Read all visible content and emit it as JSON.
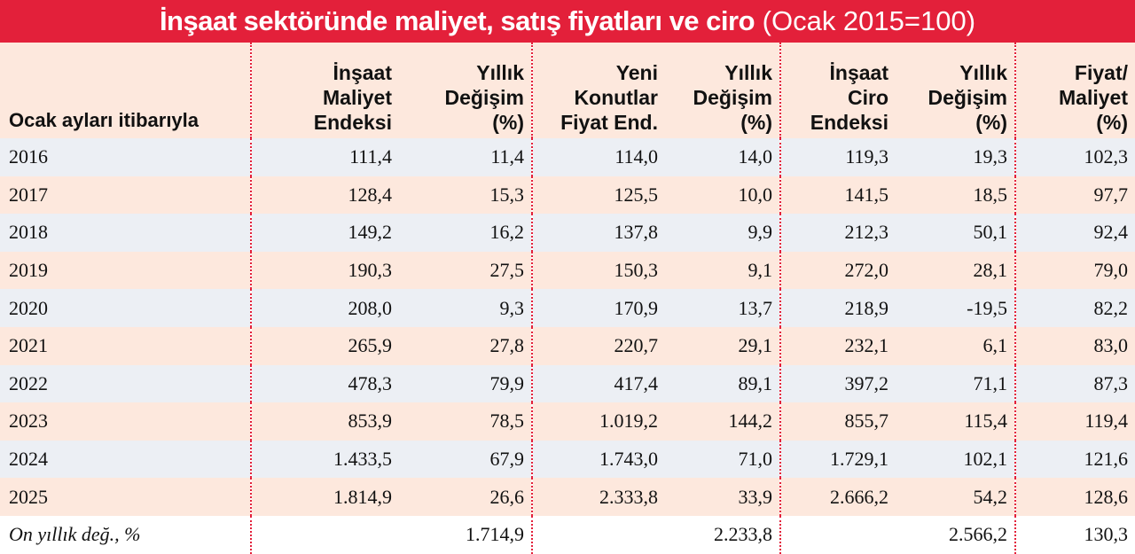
{
  "title": {
    "main": "İnşaat sektöründe maliyet, satış fiyatları ve ciro",
    "note": "(Ocak 2015=100)"
  },
  "header": [
    {
      "lines": [
        "Ocak ayları itibarıyla"
      ]
    },
    {
      "lines": [
        "İnşaat",
        "Maliyet",
        "Endeksi"
      ]
    },
    {
      "lines": [
        "Yıllık",
        "Değişim",
        "(%)"
      ]
    },
    {
      "lines": [
        "Yeni",
        "Konutlar",
        "Fiyat End."
      ]
    },
    {
      "lines": [
        "Yıllık",
        "Değişim",
        "(%)"
      ]
    },
    {
      "lines": [
        "İnşaat",
        "Ciro",
        "Endeksi"
      ]
    },
    {
      "lines": [
        "Yıllık",
        "Değişim",
        "(%)"
      ]
    },
    {
      "lines": [
        "Fiyat/",
        "Maliyet",
        "(%)"
      ]
    }
  ],
  "rows": [
    [
      "2016",
      "111,4",
      "11,4",
      "114,0",
      "14,0",
      "119,3",
      "19,3",
      "102,3"
    ],
    [
      "2017",
      "128,4",
      "15,3",
      "125,5",
      "10,0",
      "141,5",
      "18,5",
      "97,7"
    ],
    [
      "2018",
      "149,2",
      "16,2",
      "137,8",
      "9,9",
      "212,3",
      "50,1",
      "92,4"
    ],
    [
      "2019",
      "190,3",
      "27,5",
      "150,3",
      "9,1",
      "272,0",
      "28,1",
      "79,0"
    ],
    [
      "2020",
      "208,0",
      "9,3",
      "170,9",
      "13,7",
      "218,9",
      "-19,5",
      "82,2"
    ],
    [
      "2021",
      "265,9",
      "27,8",
      "220,7",
      "29,1",
      "232,1",
      "6,1",
      "83,0"
    ],
    [
      "2022",
      "478,3",
      "79,9",
      "417,4",
      "89,1",
      "397,2",
      "71,1",
      "87,3"
    ],
    [
      "2023",
      "853,9",
      "78,5",
      "1.019,2",
      "144,2",
      "855,7",
      "115,4",
      "119,4"
    ],
    [
      "2024",
      "1.433,5",
      "67,9",
      "1.743,0",
      "71,0",
      "1.729,1",
      "102,1",
      "121,6"
    ],
    [
      "2025",
      "1.814,9",
      "26,6",
      "2.333,8",
      "33,9",
      "2.666,2",
      "54,2",
      "128,6"
    ]
  ],
  "footer": {
    "label": "On yıllık değ., %",
    "cells": [
      null,
      "1.714,9",
      null,
      "2.233,8",
      null,
      "2.566,2",
      "130,3"
    ]
  }
}
